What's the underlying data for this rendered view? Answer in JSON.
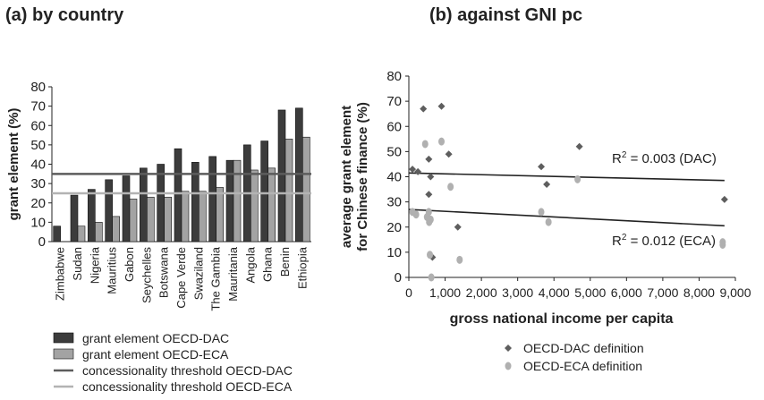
{
  "panels": {
    "left_title": "(a) by country",
    "right_title": "(b) against GNI pc"
  },
  "chart_data": [
    {
      "type": "bar",
      "title": "(a) by country",
      "ylabel": "grant element (%)",
      "xlabel": "",
      "ylim": [
        0,
        80
      ],
      "yticks": [
        0,
        10,
        20,
        30,
        40,
        50,
        60,
        70,
        80
      ],
      "categories": [
        "Zimbabwe",
        "Sudan",
        "Nigeria",
        "Mauritius",
        "Gabon",
        "Seychelles",
        "Botswana",
        "Cape Verde",
        "Swaziland",
        "The Gambia",
        "Mauritania",
        "Angola",
        "Ghana",
        "Benin",
        "Ethiopia"
      ],
      "series": [
        {
          "name": "grant element OECD-DAC",
          "color": "#3c3c3c",
          "values": [
            8,
            24,
            27,
            32,
            34,
            38,
            40,
            48,
            41,
            44,
            42,
            50,
            52,
            68,
            69
          ]
        },
        {
          "name": "grant element OECD-ECA",
          "color": "#a3a3a3",
          "values": [
            null,
            8,
            10,
            13,
            22,
            23,
            23,
            26,
            26,
            28,
            42,
            37,
            38,
            53,
            54
          ]
        }
      ],
      "thresholds": [
        {
          "name": "concessionality threshold OECD-DAC",
          "value": 35,
          "color": "#5c5c5c"
        },
        {
          "name": "concessionality threshold OECD-ECA",
          "value": 25,
          "color": "#b3b3b3"
        }
      ],
      "legend_position": "bottom-left",
      "grid": false
    },
    {
      "type": "scatter",
      "title": "(b) against GNI pc",
      "xlabel": "gross national income per capita",
      "ylabel": "average grant element for Chinese finance (%)",
      "ylabel_lines": [
        "average grant element",
        "for Chinese finance (%)"
      ],
      "xlim": [
        0,
        9000
      ],
      "ylim": [
        0,
        80
      ],
      "xtick_labels": [
        "0",
        "1,000",
        "2,000",
        "3,000",
        "4,000",
        "5,000",
        "6,000",
        "7,000",
        "8,000",
        "9,000"
      ],
      "yticks": [
        0,
        10,
        20,
        30,
        40,
        50,
        60,
        70,
        80
      ],
      "series": [
        {
          "name": "OECD-DAC definition",
          "color": "#5e5e5e",
          "marker": "diamond",
          "points": [
            [
              100,
              43
            ],
            [
              250,
              42
            ],
            [
              400,
              67
            ],
            [
              550,
              47
            ],
            [
              550,
              33
            ],
            [
              600,
              40
            ],
            [
              650,
              8
            ],
            [
              900,
              68
            ],
            [
              1100,
              49
            ],
            [
              1350,
              20
            ],
            [
              3650,
              44
            ],
            [
              3800,
              37
            ],
            [
              4700,
              52
            ],
            [
              8700,
              31
            ]
          ]
        },
        {
          "name": "OECD-ECA definition",
          "color": "#b0b0b0",
          "marker": "circle",
          "points": [
            [
              100,
              26
            ],
            [
              200,
              25
            ],
            [
              450,
              53
            ],
            [
              500,
              24
            ],
            [
              550,
              26
            ],
            [
              560,
              22
            ],
            [
              600,
              23
            ],
            [
              580,
              9
            ],
            [
              620,
              0
            ],
            [
              900,
              54
            ],
            [
              1150,
              36
            ],
            [
              1400,
              7
            ],
            [
              3650,
              26
            ],
            [
              3850,
              22
            ],
            [
              4650,
              39
            ],
            [
              8650,
              14
            ],
            [
              8650,
              13
            ]
          ]
        }
      ],
      "trendlines": [
        {
          "series": "OECD-DAC definition",
          "x": [
            0,
            8700
          ],
          "y": [
            41.5,
            38.5
          ],
          "label": "R² = 0.003 (DAC)",
          "label_text": "R",
          "label_sup": "2",
          "label_rest": " = 0.003 (DAC)"
        },
        {
          "series": "OECD-ECA definition",
          "x": [
            0,
            8700
          ],
          "y": [
            27,
            20.5
          ],
          "label": "R² = 0.012 (ECA)",
          "label_text": "R",
          "label_sup": "2",
          "label_rest": " = 0.012 (ECA)"
        }
      ],
      "legend_position": "bottom-center",
      "grid": false
    }
  ]
}
